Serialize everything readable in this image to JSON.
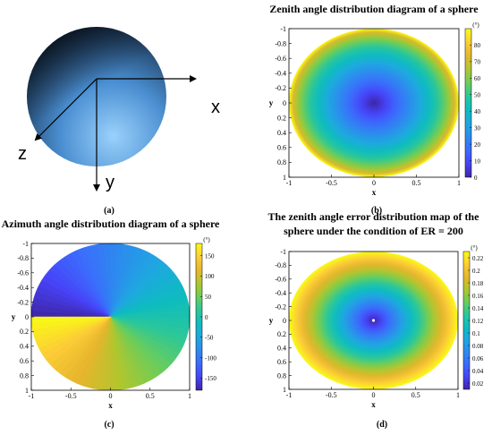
{
  "figure": {
    "captions": [
      "(a)",
      "(b)",
      "(c)",
      "(d)"
    ]
  },
  "panel_a": {
    "axis_labels": {
      "x": "x",
      "y": "y",
      "z": "z"
    },
    "colors": {
      "sphere_light": "#7fc4ff",
      "sphere_mid": "#4f95d8",
      "sphere_dark": "#0e1f33"
    }
  },
  "chart_data": [
    {
      "type": "heatmap",
      "panel": "b",
      "title": "Zenith angle distribution diagram of a sphere",
      "xlabel": "x",
      "ylabel": "y",
      "x_ticks": [
        "-1",
        "-0.5",
        "0",
        "0.5",
        "1"
      ],
      "y_ticks": [
        "-1",
        "-0.8",
        "-0.6",
        "-0.4",
        "-0.2",
        "0",
        "0.2",
        "0.4",
        "0.6",
        "0.8",
        "1"
      ],
      "xlim": [
        -1,
        1
      ],
      "ylim": [
        -1,
        1
      ],
      "colorbar": {
        "unit": "(°)",
        "ticks": [
          "0",
          "10",
          "20",
          "30",
          "40",
          "50",
          "60",
          "70",
          "80"
        ],
        "range": [
          0,
          90
        ]
      },
      "distribution": "radial: value 0 at center rising to about 90 at the rim",
      "center_value": 0,
      "edge_value": 90
    },
    {
      "type": "heatmap",
      "panel": "c",
      "title": "Azimuth angle distribution diagram of a sphere",
      "xlabel": "x",
      "ylabel": "y",
      "x_ticks": [
        "-1",
        "-0.5",
        "0",
        "0.5",
        "1"
      ],
      "y_ticks": [
        "-1",
        "-0.8",
        "-0.6",
        "-0.4",
        "-0.2",
        "0",
        "0.2",
        "0.4",
        "0.6",
        "0.8",
        "1"
      ],
      "xlim": [
        -1,
        1
      ],
      "ylim": [
        -1,
        1
      ],
      "colorbar": {
        "unit": "(°)",
        "ticks": [
          "150",
          "100",
          "50",
          "0",
          "-50",
          "-100",
          "-150"
        ],
        "range": [
          -180,
          180
        ]
      },
      "distribution": "angular: value follows polar angle, -180 to 180, discontinuity along negative x axis",
      "min_value": -180,
      "max_value": 180
    },
    {
      "type": "heatmap",
      "panel": "d",
      "title": "The zenith angle error distribution map of the sphere under the condition of ER = 200",
      "title_lines": [
        "The zenith angle error distribution map of the",
        "sphere under the condition of ER = 200"
      ],
      "xlabel": "x",
      "ylabel": "y",
      "x_ticks": [
        "-1",
        "-0.5",
        "0",
        "0.5",
        "1"
      ],
      "y_ticks": [
        "-1",
        "-0.8",
        "-0.6",
        "-0.4",
        "-0.2",
        "0",
        "0.2",
        "0.4",
        "0.6",
        "0.8",
        "1"
      ],
      "xlim": [
        -1,
        1
      ],
      "ylim": [
        -1,
        1
      ],
      "colorbar": {
        "unit": "(°)",
        "ticks": [
          "0.22",
          "0.2",
          "0.18",
          "0.16",
          "0.14",
          "0.12",
          "0.1",
          "0.08",
          "0.06",
          "0.04",
          "0.02"
        ],
        "range": [
          0.01,
          0.23
        ]
      },
      "distribution": "radial: about 0.01 at center rising to about 0.23 at the rim",
      "center_value": 0.01,
      "edge_value": 0.23
    }
  ],
  "colormap": [
    "#3e26a8",
    "#4743f8",
    "#3b6cfc",
    "#2d8bee",
    "#1ea8e0",
    "#0ebcbf",
    "#2bc79a",
    "#6ccd5a",
    "#b0c62e",
    "#e6b52d",
    "#fccd37",
    "#f9fb15"
  ]
}
